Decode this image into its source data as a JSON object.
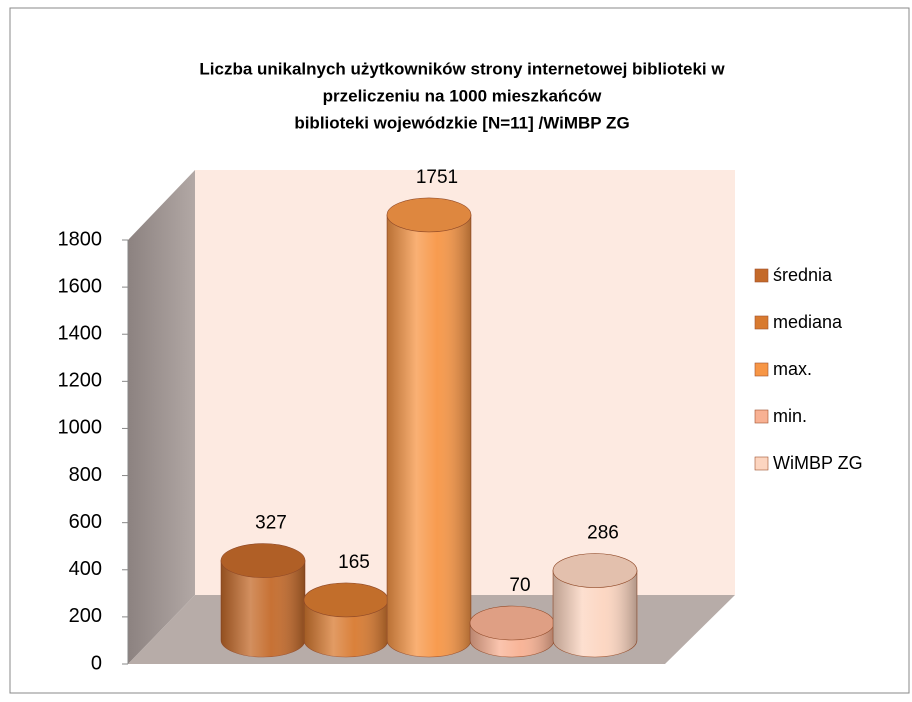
{
  "chart_data": {
    "type": "bar",
    "title": [
      "Liczba unikalnych użytkowników strony internetowej biblioteki w",
      "przeliczeniu na 1000 mieszkańców",
      "biblioteki wojewódzkie  [N=11] /WiMBP  ZG"
    ],
    "series": [
      {
        "name": "średnia",
        "color": "#c46a2a",
        "values": [
          327
        ]
      },
      {
        "name": "mediana",
        "color": "#d87a30",
        "values": [
          165
        ]
      },
      {
        "name": "max.",
        "color": "#f79646",
        "values": [
          1751
        ]
      },
      {
        "name": "min.",
        "color": "#f8b193",
        "values": [
          70
        ]
      },
      {
        "name": "WiMBP ZG",
        "color": "#fcd5c0",
        "values": [
          286
        ]
      }
    ],
    "ylim": [
      0,
      1800
    ],
    "yticks": [
      0,
      200,
      400,
      600,
      800,
      1000,
      1200,
      1400,
      1600,
      1800
    ]
  }
}
